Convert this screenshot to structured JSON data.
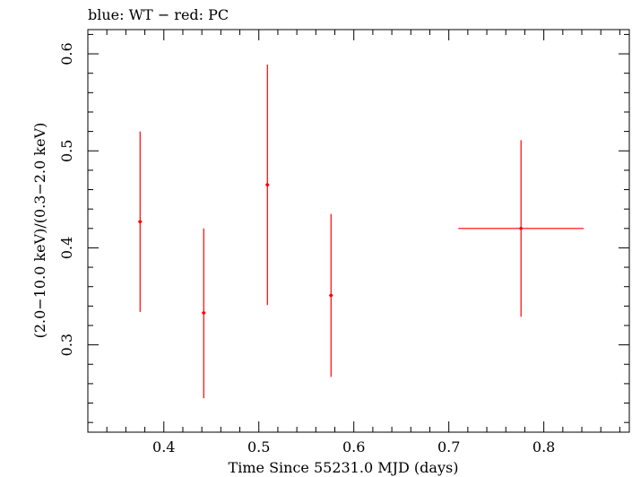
{
  "chart_data": {
    "type": "scatter",
    "title": "blue: WT − red: PC",
    "xlabel": "Time Since 55231.0 MJD (days)",
    "ylabel": "(2.0−10.0 keV)/(0.3−2.0 keV)",
    "xlim": [
      0.32,
      0.89
    ],
    "ylim": [
      0.21,
      0.625
    ],
    "xticks": [
      0.4,
      0.5,
      0.6,
      0.7,
      0.8
    ],
    "xtick_labels": [
      "0.4",
      "0.5",
      "0.6",
      "0.7",
      "0.8"
    ],
    "yticks": [
      0.3,
      0.4,
      0.5,
      0.6
    ],
    "ytick_labels": [
      "0.3",
      "0.4",
      "0.5",
      "0.6"
    ],
    "grid": false,
    "series": [
      {
        "color": "#ff0000",
        "points": [
          {
            "x": 0.375,
            "xerr": 0.002,
            "y": 0.427,
            "ylow": 0.334,
            "yhigh": 0.52
          },
          {
            "x": 0.442,
            "xerr": 0.002,
            "y": 0.333,
            "ylow": 0.245,
            "yhigh": 0.42
          },
          {
            "x": 0.509,
            "xerr": 0.002,
            "y": 0.465,
            "ylow": 0.341,
            "yhigh": 0.589
          },
          {
            "x": 0.576,
            "xerr": 0.002,
            "y": 0.351,
            "ylow": 0.267,
            "yhigh": 0.435
          },
          {
            "x": 0.776,
            "xerr": 0.066,
            "y": 0.42,
            "ylow": 0.329,
            "yhigh": 0.511
          }
        ]
      }
    ]
  }
}
